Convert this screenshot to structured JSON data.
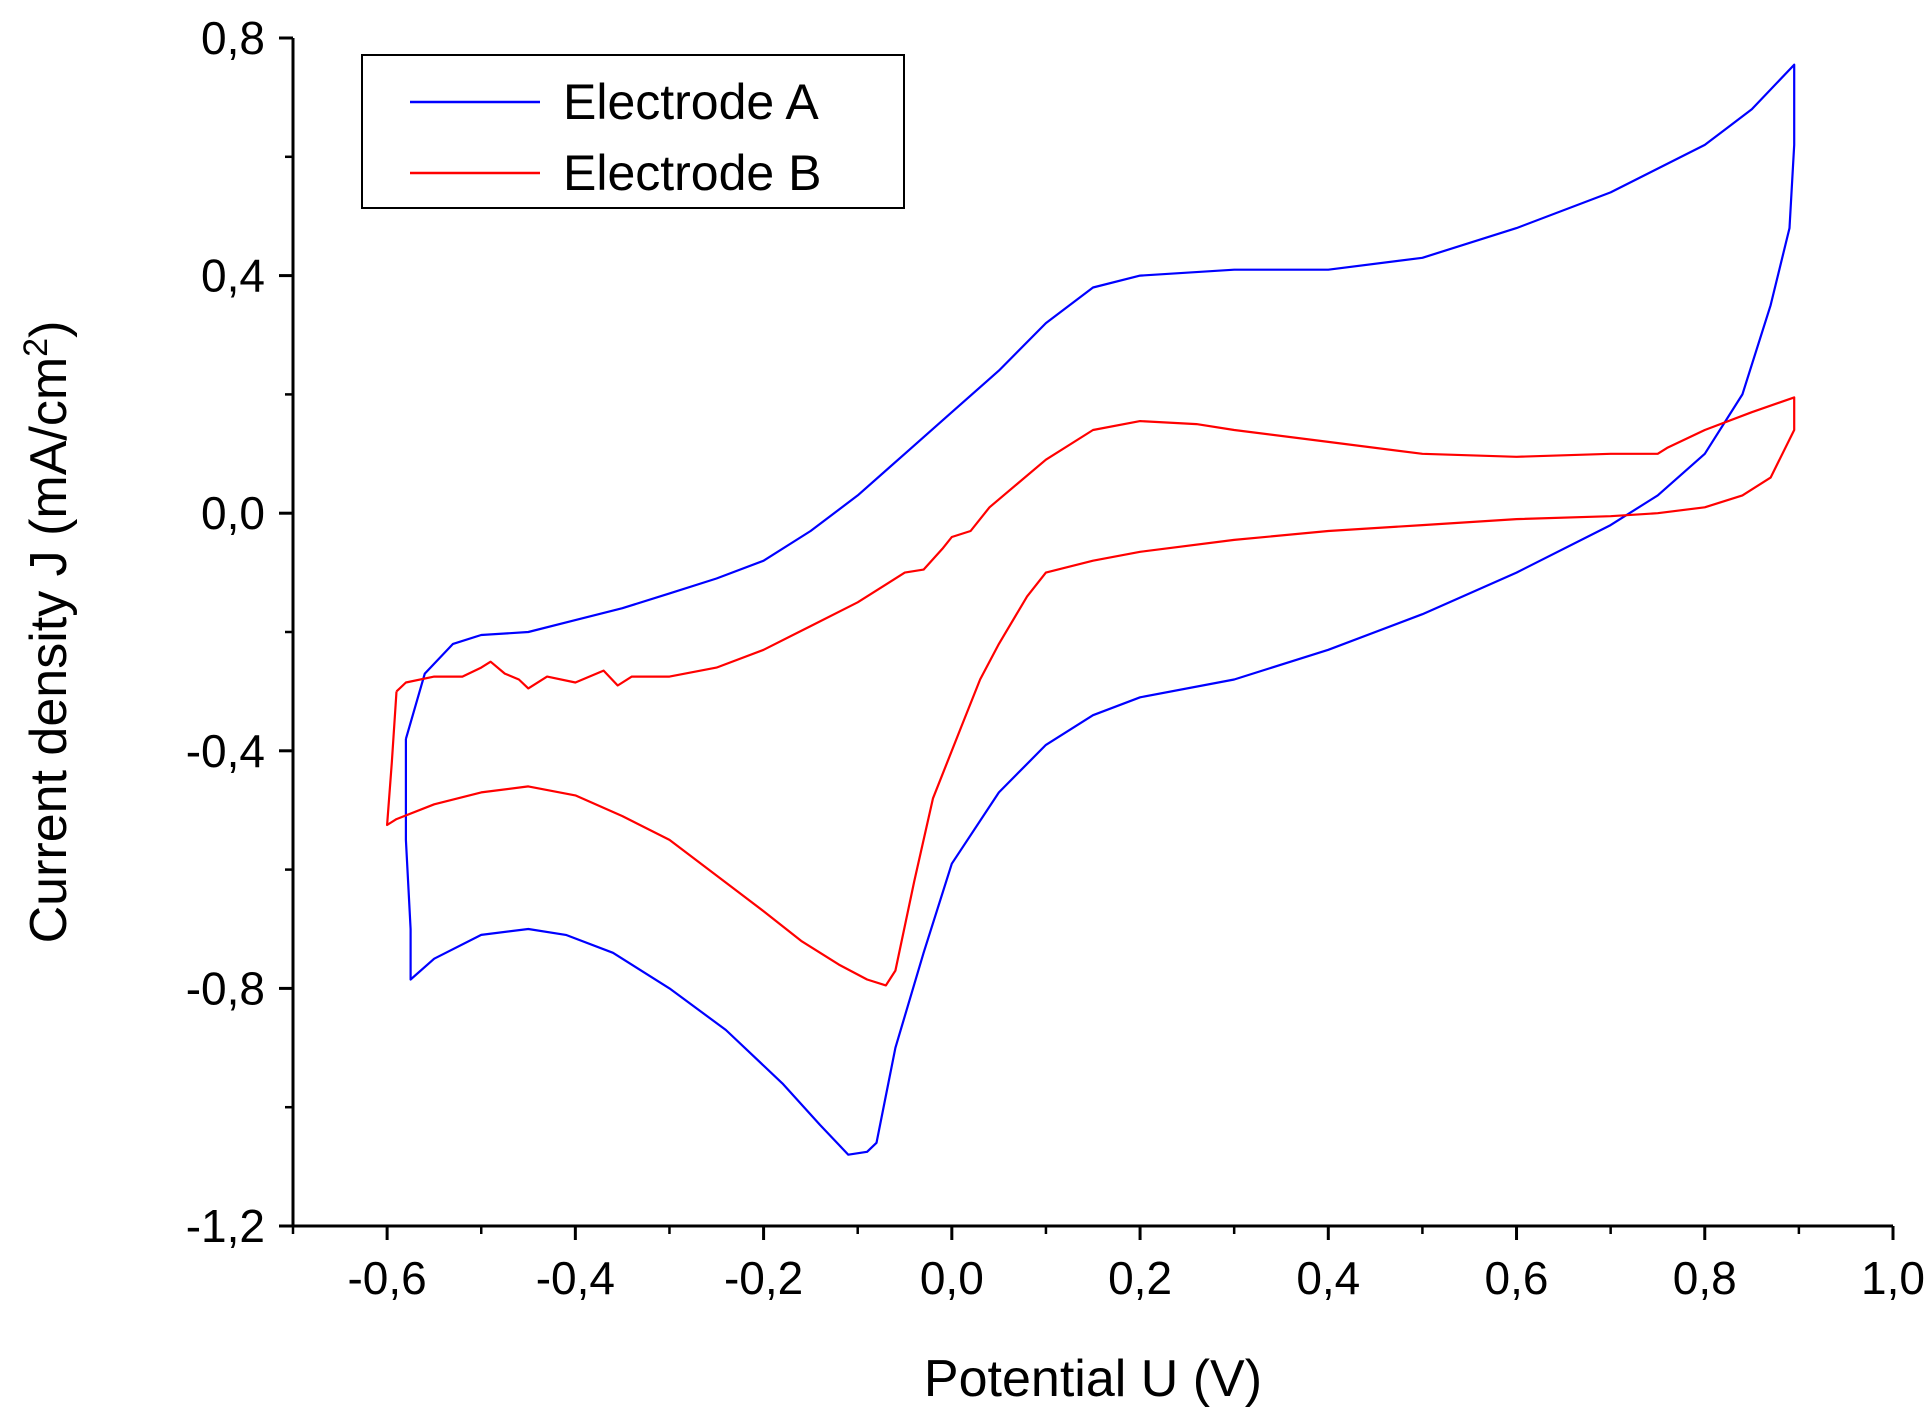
{
  "chart_data": {
    "type": "line",
    "title": "",
    "xlabel": "Potential U  (V)",
    "ylabel": "Current density J (mA/cm",
    "ylabel_sup": "2",
    "ylabel_close": ")",
    "xlim": [
      -0.7,
      1.0
    ],
    "ylim": [
      -1.2,
      0.8
    ],
    "x_ticks": [
      -0.6,
      -0.4,
      -0.2,
      0.0,
      0.2,
      0.4,
      0.6,
      0.8,
      1.0
    ],
    "x_tick_labels": [
      "-0,6",
      "-0,4",
      "-0,2",
      "0,0",
      "0,2",
      "0,4",
      "0,6",
      "0,8",
      "1,0"
    ],
    "y_ticks": [
      0.8,
      0.4,
      0.0,
      -0.4,
      -0.8,
      -1.2
    ],
    "y_tick_labels": [
      "0,8",
      "0,4",
      "0,0",
      "-0,4",
      "-0,8",
      "-1,2"
    ],
    "grid": false,
    "legend_position": "top-left",
    "series": [
      {
        "name": "Electrode A",
        "color": "#0000ff",
        "points": [
          [
            -0.58,
            -0.38
          ],
          [
            -0.56,
            -0.27
          ],
          [
            -0.53,
            -0.22
          ],
          [
            -0.5,
            -0.205
          ],
          [
            -0.45,
            -0.2
          ],
          [
            -0.4,
            -0.18
          ],
          [
            -0.35,
            -0.16
          ],
          [
            -0.3,
            -0.135
          ],
          [
            -0.25,
            -0.11
          ],
          [
            -0.2,
            -0.08
          ],
          [
            -0.15,
            -0.03
          ],
          [
            -0.1,
            0.03
          ],
          [
            -0.05,
            0.1
          ],
          [
            0.0,
            0.17
          ],
          [
            0.05,
            0.24
          ],
          [
            0.1,
            0.32
          ],
          [
            0.15,
            0.38
          ],
          [
            0.2,
            0.4
          ],
          [
            0.3,
            0.41
          ],
          [
            0.4,
            0.41
          ],
          [
            0.5,
            0.43
          ],
          [
            0.6,
            0.48
          ],
          [
            0.7,
            0.54
          ],
          [
            0.8,
            0.62
          ],
          [
            0.85,
            0.68
          ],
          [
            0.895,
            0.755
          ],
          [
            0.895,
            0.62
          ],
          [
            0.89,
            0.48
          ],
          [
            0.87,
            0.35
          ],
          [
            0.84,
            0.2
          ],
          [
            0.8,
            0.1
          ],
          [
            0.75,
            0.03
          ],
          [
            0.7,
            -0.02
          ],
          [
            0.6,
            -0.1
          ],
          [
            0.5,
            -0.17
          ],
          [
            0.4,
            -0.23
          ],
          [
            0.3,
            -0.28
          ],
          [
            0.2,
            -0.31
          ],
          [
            0.15,
            -0.34
          ],
          [
            0.1,
            -0.39
          ],
          [
            0.05,
            -0.47
          ],
          [
            0.0,
            -0.59
          ],
          [
            -0.03,
            -0.74
          ],
          [
            -0.06,
            -0.9
          ],
          [
            -0.08,
            -1.06
          ],
          [
            -0.09,
            -1.075
          ],
          [
            -0.11,
            -1.08
          ],
          [
            -0.14,
            -1.03
          ],
          [
            -0.18,
            -0.96
          ],
          [
            -0.24,
            -0.87
          ],
          [
            -0.3,
            -0.8
          ],
          [
            -0.36,
            -0.74
          ],
          [
            -0.41,
            -0.71
          ],
          [
            -0.45,
            -0.7
          ],
          [
            -0.5,
            -0.71
          ],
          [
            -0.55,
            -0.75
          ],
          [
            -0.575,
            -0.785
          ],
          [
            -0.575,
            -0.7
          ],
          [
            -0.58,
            -0.55
          ],
          [
            -0.58,
            -0.38
          ]
        ]
      },
      {
        "name": "Electrode B",
        "color": "#ff0000",
        "points": [
          [
            -0.59,
            -0.3
          ],
          [
            -0.58,
            -0.285
          ],
          [
            -0.55,
            -0.275
          ],
          [
            -0.52,
            -0.275
          ],
          [
            -0.5,
            -0.26
          ],
          [
            -0.49,
            -0.25
          ],
          [
            -0.475,
            -0.27
          ],
          [
            -0.46,
            -0.28
          ],
          [
            -0.45,
            -0.295
          ],
          [
            -0.43,
            -0.275
          ],
          [
            -0.4,
            -0.285
          ],
          [
            -0.37,
            -0.265
          ],
          [
            -0.355,
            -0.29
          ],
          [
            -0.34,
            -0.275
          ],
          [
            -0.3,
            -0.275
          ],
          [
            -0.25,
            -0.26
          ],
          [
            -0.2,
            -0.23
          ],
          [
            -0.15,
            -0.19
          ],
          [
            -0.1,
            -0.15
          ],
          [
            -0.05,
            -0.1
          ],
          [
            -0.03,
            -0.095
          ],
          [
            -0.01,
            -0.06
          ],
          [
            0.0,
            -0.04
          ],
          [
            0.02,
            -0.03
          ],
          [
            0.04,
            0.01
          ],
          [
            0.07,
            0.05
          ],
          [
            0.1,
            0.09
          ],
          [
            0.15,
            0.14
          ],
          [
            0.2,
            0.155
          ],
          [
            0.26,
            0.15
          ],
          [
            0.3,
            0.14
          ],
          [
            0.4,
            0.12
          ],
          [
            0.5,
            0.1
          ],
          [
            0.6,
            0.095
          ],
          [
            0.7,
            0.1
          ],
          [
            0.75,
            0.1
          ],
          [
            0.76,
            0.11
          ],
          [
            0.8,
            0.14
          ],
          [
            0.85,
            0.17
          ],
          [
            0.895,
            0.195
          ],
          [
            0.895,
            0.14
          ],
          [
            0.87,
            0.06
          ],
          [
            0.84,
            0.03
          ],
          [
            0.8,
            0.01
          ],
          [
            0.75,
            0.0
          ],
          [
            0.7,
            -0.005
          ],
          [
            0.6,
            -0.01
          ],
          [
            0.5,
            -0.02
          ],
          [
            0.4,
            -0.03
          ],
          [
            0.3,
            -0.045
          ],
          [
            0.2,
            -0.065
          ],
          [
            0.15,
            -0.08
          ],
          [
            0.1,
            -0.1
          ],
          [
            0.08,
            -0.14
          ],
          [
            0.05,
            -0.22
          ],
          [
            0.03,
            -0.28
          ],
          [
            0.01,
            -0.36
          ],
          [
            -0.02,
            -0.48
          ],
          [
            -0.04,
            -0.62
          ],
          [
            -0.06,
            -0.77
          ],
          [
            -0.07,
            -0.795
          ],
          [
            -0.09,
            -0.785
          ],
          [
            -0.12,
            -0.76
          ],
          [
            -0.16,
            -0.72
          ],
          [
            -0.2,
            -0.67
          ],
          [
            -0.25,
            -0.61
          ],
          [
            -0.3,
            -0.55
          ],
          [
            -0.35,
            -0.51
          ],
          [
            -0.4,
            -0.475
          ],
          [
            -0.45,
            -0.46
          ],
          [
            -0.5,
            -0.47
          ],
          [
            -0.55,
            -0.49
          ],
          [
            -0.59,
            -0.515
          ],
          [
            -0.6,
            -0.525
          ],
          [
            -0.595,
            -0.42
          ],
          [
            -0.59,
            -0.3
          ]
        ]
      }
    ]
  }
}
